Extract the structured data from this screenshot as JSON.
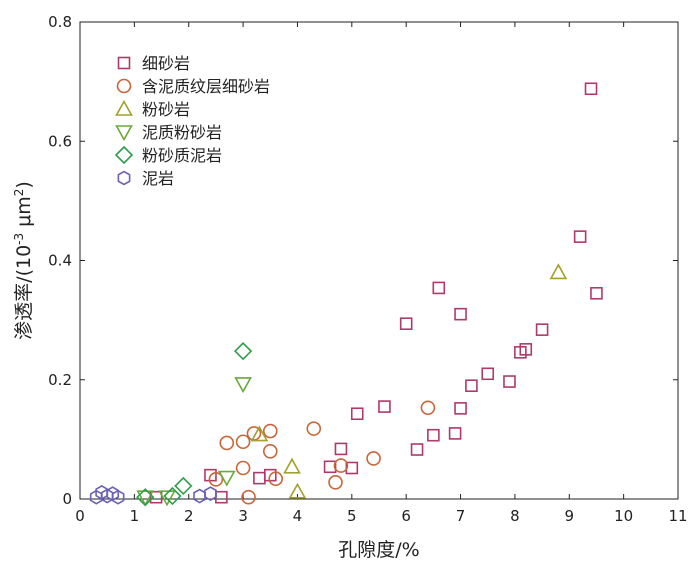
{
  "chart_data": {
    "type": "scatter",
    "title": "",
    "xlabel": "孔隙度/%",
    "ylabel_parts": {
      "main": "渗透率/(10",
      "sup1": "-3",
      "mid": " μm",
      "sup2": "2",
      "end": ")"
    },
    "xlim": [
      0,
      11
    ],
    "ylim": [
      0,
      0.8
    ],
    "x_ticks": [
      "0",
      "1",
      "2",
      "3",
      "4",
      "5",
      "6",
      "7",
      "8",
      "9",
      "10",
      "11"
    ],
    "y_ticks": [
      "0",
      "0.2",
      "0.4",
      "0.6",
      "0.8"
    ],
    "legend_position": "top-left",
    "series": [
      {
        "name": "细砂岩",
        "marker": "square",
        "color": "#b0396b",
        "points": [
          [
            9.4,
            0.688
          ],
          [
            9.2,
            0.44
          ],
          [
            9.5,
            0.345
          ],
          [
            6.6,
            0.354
          ],
          [
            6.0,
            0.294
          ],
          [
            7.0,
            0.31
          ],
          [
            8.5,
            0.284
          ],
          [
            8.2,
            0.251
          ],
          [
            8.1,
            0.246
          ],
          [
            7.5,
            0.21
          ],
          [
            7.9,
            0.197
          ],
          [
            7.2,
            0.19
          ],
          [
            5.6,
            0.155
          ],
          [
            7.0,
            0.152
          ],
          [
            5.1,
            0.143
          ],
          [
            6.9,
            0.11
          ],
          [
            6.5,
            0.107
          ],
          [
            6.2,
            0.083
          ],
          [
            4.8,
            0.084
          ],
          [
            4.6,
            0.054
          ],
          [
            5.0,
            0.052
          ],
          [
            3.5,
            0.04
          ],
          [
            3.3,
            0.035
          ],
          [
            2.4,
            0.04
          ],
          [
            2.6,
            0.003
          ],
          [
            1.4,
            0.003
          ]
        ]
      },
      {
        "name": "含泥质纹层细砂岩",
        "marker": "circle",
        "color": "#c8663a",
        "points": [
          [
            4.3,
            0.118
          ],
          [
            3.5,
            0.114
          ],
          [
            3.2,
            0.11
          ],
          [
            2.7,
            0.094
          ],
          [
            3.0,
            0.096
          ],
          [
            3.5,
            0.08
          ],
          [
            6.4,
            0.153
          ],
          [
            5.4,
            0.068
          ],
          [
            4.8,
            0.056
          ],
          [
            3.0,
            0.052
          ],
          [
            3.6,
            0.034
          ],
          [
            4.7,
            0.028
          ],
          [
            2.5,
            0.033
          ],
          [
            3.1,
            0.003
          ]
        ]
      },
      {
        "name": "粉砂岩",
        "marker": "triangle-up",
        "color": "#a3a030",
        "points": [
          [
            8.8,
            0.38
          ],
          [
            3.3,
            0.108
          ],
          [
            3.9,
            0.054
          ],
          [
            4.0,
            0.012
          ]
        ]
      },
      {
        "name": "泥质粉砂岩",
        "marker": "triangle-down",
        "color": "#6aa93b",
        "points": [
          [
            3.0,
            0.193
          ],
          [
            2.7,
            0.036
          ],
          [
            1.6,
            0.003
          ],
          [
            1.2,
            0.003
          ]
        ]
      },
      {
        "name": "粉砂质泥岩",
        "marker": "diamond",
        "color": "#2e9d4a",
        "points": [
          [
            3.0,
            0.248
          ],
          [
            1.9,
            0.022
          ],
          [
            1.7,
            0.005
          ],
          [
            1.2,
            0.003
          ]
        ]
      },
      {
        "name": "泥岩",
        "marker": "hexagon",
        "color": "#6b62b5",
        "points": [
          [
            0.4,
            0.011
          ],
          [
            0.6,
            0.009
          ],
          [
            0.5,
            0.005
          ],
          [
            0.7,
            0.003
          ],
          [
            2.4,
            0.009
          ],
          [
            2.2,
            0.005
          ],
          [
            0.3,
            0.003
          ]
        ]
      }
    ]
  }
}
